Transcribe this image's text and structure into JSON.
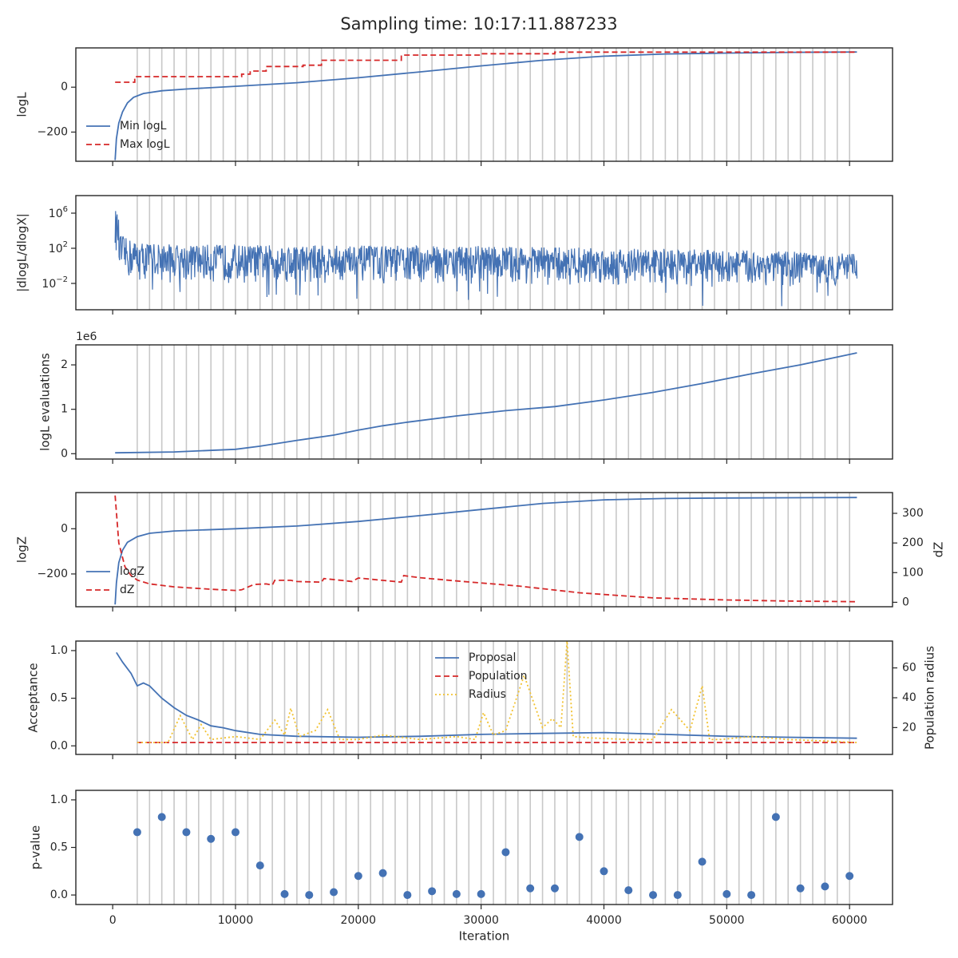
{
  "title": "Sampling time: 10:17:11.887233",
  "colors": {
    "blue": "#4472b4",
    "red": "#d62728",
    "gold": "#f2c230",
    "grid": "#c8c8c8",
    "frame": "#262626"
  },
  "chart_data": [
    {
      "type": "line",
      "panel": "logL",
      "ylabel": "logL",
      "xlim": [
        -3000,
        63500
      ],
      "ylim": [
        -330,
        175
      ],
      "yticks": [
        {
          "v": 0,
          "label": "0"
        },
        {
          "v": -200,
          "label": "−200"
        }
      ],
      "legend": {
        "placement": "lower-left",
        "entries": [
          "Min logL",
          "Max logL"
        ]
      },
      "series": [
        {
          "name": "Min logL",
          "style": "solid",
          "color": "#4472b4",
          "x": [
            200,
            300,
            500,
            800,
            1200,
            1700,
            2500,
            4000,
            6000,
            10000,
            15000,
            20000,
            25000,
            30000,
            35000,
            40000,
            45000,
            50000,
            55000,
            60600
          ],
          "y": [
            -325,
            -230,
            -160,
            -110,
            -70,
            -45,
            -28,
            -16,
            -8,
            4,
            20,
            42,
            68,
            95,
            120,
            138,
            148,
            152,
            155,
            157
          ]
        },
        {
          "name": "Max logL",
          "style": "dashed",
          "color": "#d62728",
          "x": [
            200,
            1800,
            1800,
            10500,
            10500,
            11200,
            11200,
            12500,
            12500,
            15500,
            15500,
            17000,
            17000,
            23500,
            23500,
            30000,
            30000,
            36000,
            36000,
            60600
          ],
          "y": [
            22,
            22,
            47,
            47,
            58,
            58,
            72,
            72,
            92,
            92,
            98,
            98,
            120,
            120,
            143,
            143,
            149,
            149,
            156,
            156
          ]
        }
      ]
    },
    {
      "type": "line",
      "panel": "dlogL/dlogX",
      "ylabel": "|dlogL/dlogX|",
      "yscale": "log",
      "xlim": [
        -3000,
        63500
      ],
      "ylim": [
        1e-05,
        100000000
      ],
      "yticks": [
        {
          "v": 1000000,
          "label": "10^6"
        },
        {
          "v": 100,
          "label": "10^2"
        },
        {
          "v": 0.01,
          "label": "10^-2"
        }
      ],
      "series": [
        {
          "name": "",
          "style": "noisy band",
          "color": "#4472b4",
          "x": [
            200,
            500,
            1000,
            2000,
            5000,
            10000,
            20000,
            30000,
            40000,
            50000,
            60600
          ],
          "upper": [
            3000000,
            5000,
            1500,
            600,
            300,
            250,
            200,
            180,
            120,
            60,
            25
          ],
          "lower": [
            50,
            0.05,
            0.02,
            0.015,
            0.01,
            0.01,
            0.01,
            0.008,
            0.005,
            0.004,
            0.004
          ]
        }
      ]
    },
    {
      "type": "line",
      "panel": "logL evaluations",
      "ylabel": "logL evaluations",
      "offset_label": "1e6",
      "xlim": [
        -3000,
        63500
      ],
      "ylim": [
        -0.12,
        2.45
      ],
      "yticks": [
        {
          "v": 0,
          "label": "0"
        },
        {
          "v": 1,
          "label": "1"
        },
        {
          "v": 2,
          "label": "2"
        }
      ],
      "series": [
        {
          "name": "",
          "style": "solid",
          "color": "#4472b4",
          "x": [
            200,
            5000,
            10000,
            12000,
            15000,
            18000,
            20000,
            22000,
            24000,
            28000,
            32000,
            36000,
            40000,
            44000,
            48000,
            52000,
            56000,
            60600
          ],
          "y": [
            0.02,
            0.04,
            0.1,
            0.17,
            0.3,
            0.42,
            0.53,
            0.63,
            0.71,
            0.85,
            0.97,
            1.06,
            1.21,
            1.38,
            1.58,
            1.8,
            2.0,
            2.27
          ]
        }
      ]
    },
    {
      "type": "line",
      "panel": "logZ",
      "ylabel": "logZ",
      "y2label": "dZ",
      "xlim": [
        -3000,
        63500
      ],
      "ylim": [
        -345,
        160
      ],
      "yticks": [
        {
          "v": 0,
          "label": "0"
        },
        {
          "v": -200,
          "label": "−200"
        }
      ],
      "y2lim": [
        -15,
        370
      ],
      "y2ticks": [
        {
          "v": 0,
          "label": "0"
        },
        {
          "v": 100,
          "label": "100"
        },
        {
          "v": 200,
          "label": "200"
        },
        {
          "v": 300,
          "label": "300"
        }
      ],
      "legend": {
        "placement": "lower-left",
        "entries": [
          "logZ",
          "dZ"
        ]
      },
      "series": [
        {
          "name": "logZ",
          "style": "solid",
          "color": "#4472b4",
          "axis": "left",
          "x": [
            200,
            300,
            500,
            800,
            1200,
            2000,
            3000,
            5000,
            10000,
            15000,
            20000,
            25000,
            30000,
            35000,
            40000,
            45000,
            50000,
            55000,
            60600
          ],
          "y": [
            -335,
            -240,
            -150,
            -95,
            -60,
            -35,
            -20,
            -10,
            0,
            12,
            32,
            58,
            85,
            112,
            128,
            134,
            136,
            137,
            138
          ]
        },
        {
          "name": "dZ",
          "style": "dashed",
          "color": "#d62728",
          "axis": "right",
          "x": [
            200,
            500,
            1000,
            1500,
            2000,
            3000,
            5000,
            8000,
            10000,
            10500,
            11500,
            12500,
            13000,
            13200,
            14500,
            15000,
            17000,
            17200,
            19500,
            20000,
            22500,
            23500,
            23700,
            25000,
            28000,
            33000,
            38000,
            44000,
            50000,
            55000,
            60600
          ],
          "y": [
            360,
            200,
            120,
            90,
            75,
            62,
            52,
            44,
            40,
            42,
            60,
            62,
            58,
            74,
            74,
            70,
            68,
            80,
            70,
            82,
            72,
            68,
            90,
            83,
            72,
            55,
            32,
            15,
            8,
            4,
            2
          ]
        }
      ]
    },
    {
      "type": "line",
      "panel": "acceptance",
      "ylabel": "Acceptance",
      "y2label": "Population radius",
      "xlim": [
        -3000,
        63500
      ],
      "ylim": [
        -0.09,
        1.1
      ],
      "yticks": [
        {
          "v": 0,
          "label": "0.0"
        },
        {
          "v": 0.5,
          "label": "0.5"
        },
        {
          "v": 1,
          "label": "1.0"
        }
      ],
      "y2lim": [
        2,
        78
      ],
      "y2ticks": [
        {
          "v": 20,
          "label": "20"
        },
        {
          "v": 40,
          "label": "40"
        },
        {
          "v": 60,
          "label": "60"
        }
      ],
      "legend": {
        "placement": "upper-center",
        "entries": [
          "Proposal",
          "Population",
          "Radius"
        ]
      },
      "series": [
        {
          "name": "Proposal",
          "style": "solid",
          "color": "#4472b4",
          "axis": "left",
          "x": [
            300,
            800,
            1500,
            2000,
            2500,
            3000,
            4000,
            5000,
            6000,
            7000,
            8000,
            9000,
            10000,
            12000,
            15000,
            20000,
            25000,
            30000,
            35000,
            40000,
            45000,
            50000,
            55000,
            60600
          ],
          "y": [
            0.98,
            0.88,
            0.76,
            0.63,
            0.66,
            0.63,
            0.5,
            0.4,
            0.32,
            0.27,
            0.21,
            0.19,
            0.16,
            0.12,
            0.1,
            0.09,
            0.1,
            0.12,
            0.13,
            0.14,
            0.12,
            0.1,
            0.09,
            0.08
          ]
        },
        {
          "name": "Population",
          "style": "dashed",
          "color": "#d62728",
          "axis": "right",
          "x": [
            2000,
            60600
          ],
          "y": [
            10,
            10
          ]
        },
        {
          "name": "Radius",
          "style": "dotted",
          "color": "#f2c230",
          "axis": "right",
          "x": [
            2000,
            4500,
            5500,
            6500,
            7200,
            8000,
            10000,
            12000,
            13200,
            14000,
            14500,
            15200,
            16500,
            17500,
            18500,
            20000,
            22000,
            25000,
            28000,
            29500,
            30200,
            31000,
            32000,
            33500,
            35000,
            35800,
            36500,
            37000,
            37500,
            39000,
            42000,
            44000,
            45500,
            47000,
            48000,
            48600,
            49500,
            52000,
            55000,
            58000,
            60600
          ],
          "y": [
            10,
            10,
            28,
            12,
            22,
            12,
            14,
            12,
            25,
            15,
            33,
            14,
            18,
            32,
            12,
            12,
            15,
            12,
            14,
            12,
            30,
            15,
            18,
            55,
            20,
            26,
            20,
            78,
            14,
            13,
            12,
            12,
            32,
            18,
            48,
            12,
            12,
            14,
            12,
            11,
            10
          ]
        }
      ]
    },
    {
      "type": "scatter",
      "panel": "p-value",
      "ylabel": "p-value",
      "xlabel": "Iteration",
      "xlim": [
        -3000,
        63500
      ],
      "ylim": [
        -0.1,
        1.1
      ],
      "yticks": [
        {
          "v": 0,
          "label": "0.0"
        },
        {
          "v": 0.5,
          "label": "0.5"
        },
        {
          "v": 1,
          "label": "1.0"
        }
      ],
      "xticks": [
        {
          "v": 0,
          "label": "0"
        },
        {
          "v": 10000,
          "label": "10000"
        },
        {
          "v": 20000,
          "label": "20000"
        },
        {
          "v": 30000,
          "label": "30000"
        },
        {
          "v": 40000,
          "label": "40000"
        },
        {
          "v": 50000,
          "label": "50000"
        },
        {
          "v": 60000,
          "label": "60000"
        }
      ],
      "series": [
        {
          "name": "",
          "color": "#4472b4",
          "x": [
            2000,
            4000,
            6000,
            8000,
            10000,
            12000,
            14000,
            16000,
            18000,
            20000,
            22000,
            24000,
            26000,
            28000,
            30000,
            32000,
            34000,
            36000,
            38000,
            40000,
            42000,
            44000,
            46000,
            48000,
            50000,
            52000,
            54000,
            56000,
            58000,
            60000
          ],
          "y": [
            0.66,
            0.82,
            0.66,
            0.59,
            0.66,
            0.31,
            0.01,
            0.0,
            0.03,
            0.2,
            0.23,
            0.0,
            0.04,
            0.01,
            0.01,
            0.45,
            0.07,
            0.07,
            0.61,
            0.25,
            0.05,
            0.0,
            0.0,
            0.35,
            0.01,
            0.0,
            0.82,
            0.07,
            0.09,
            0.2
          ]
        }
      ]
    }
  ]
}
